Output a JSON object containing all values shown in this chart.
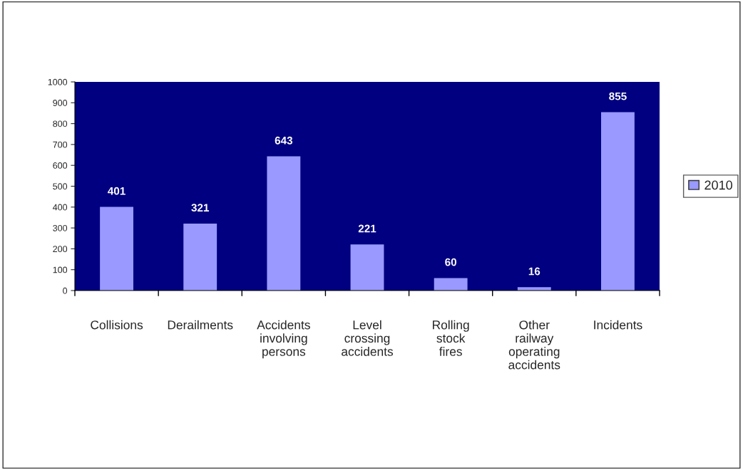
{
  "chart_data": {
    "type": "bar",
    "categories": [
      "Collisions",
      "Derailments",
      "Accidents\ninvolving\npersons",
      "Level\ncrossing\naccidents",
      "Rolling\nstock\nfires",
      "Other\nrailway\noperating\naccidents",
      "Incidents"
    ],
    "series": [
      {
        "name": "2010",
        "color": "#9999ff",
        "values": [
          401,
          321,
          643,
          221,
          60,
          16,
          855
        ]
      }
    ],
    "ylim": [
      0,
      1000
    ],
    "yticks": [
      0,
      100,
      200,
      300,
      400,
      500,
      600,
      700,
      800,
      900,
      1000
    ],
    "data_labels": true,
    "grid": false,
    "legend": "right"
  }
}
